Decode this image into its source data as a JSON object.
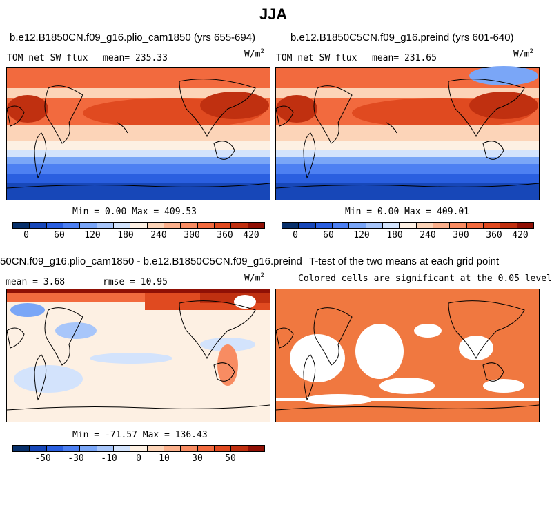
{
  "main_title": "JJA",
  "panels": {
    "top_left": {
      "case": "b.e12.B1850CN.f09_g16.plio_cam1850 (yrs 655-694)",
      "variable": "TOM net SW flux",
      "mean_text": "mean= 235.33",
      "units": "W/m",
      "units_exp": "2",
      "minmax": "Min =   0.00 Max = 409.53"
    },
    "top_right": {
      "case": "b.e12.B1850C5CN.f09_g16.preind (yrs 601-640)",
      "variable": "TOM net SW flux",
      "mean_text": "mean= 231.65",
      "units": "W/m",
      "units_exp": "2",
      "minmax": "Min =   0.00 Max = 409.01"
    },
    "bottom_left": {
      "case": "50CN.f09_g16.plio_cam1850 - b.e12.B1850C5CN.f09_g16.preind",
      "mean_text": "mean =   3.68",
      "rmse_text": "rmse =  10.95",
      "units": "W/m",
      "units_exp": "2",
      "minmax": "Min = -71.57 Max = 136.43"
    },
    "bottom_right": {
      "title": "T-test of the two means at each grid point",
      "subtitle": "Colored cells are significant at the 0.05 level"
    }
  },
  "colorbars": {
    "abs": {
      "ticks": [
        "0",
        "60",
        "120",
        "180",
        "240",
        "300",
        "360",
        "420"
      ],
      "colors": [
        "#08306b",
        "#1747b8",
        "#2a5fe0",
        "#4d80f2",
        "#7aa6f7",
        "#a8c6fa",
        "#d3e3fc",
        "#fdf0e3",
        "#fcd4b8",
        "#fbb08c",
        "#f88c62",
        "#f26a3e",
        "#e04a20",
        "#c03010",
        "#901005"
      ]
    },
    "diff": {
      "ticks": [
        "-50",
        "-30",
        "-10",
        "0",
        "10",
        "30",
        "50"
      ],
      "colors": [
        "#08306b",
        "#1747b8",
        "#2a5fe0",
        "#4d80f2",
        "#7aa6f7",
        "#a8c6fa",
        "#d3e3fc",
        "#fdf0e3",
        "#fcd4b8",
        "#fbb08c",
        "#f88c62",
        "#f26a3e",
        "#e04a20",
        "#c03010",
        "#901005"
      ]
    }
  },
  "chart_data": [
    {
      "type": "heatmap",
      "title": "TOM net SW flux",
      "subtitle": "b.e12.B1850CN.f09_g16.plio_cam1850 (yrs 655-694)",
      "units": "W/m2",
      "mean": 235.33,
      "min": 0.0,
      "max": 409.53,
      "colorbar_ticks": [
        0,
        60,
        120,
        180,
        240,
        300,
        360,
        420
      ]
    },
    {
      "type": "heatmap",
      "title": "TOM net SW flux",
      "subtitle": "b.e12.B1850C5CN.f09_g16.preind (yrs 601-640)",
      "units": "W/m2",
      "mean": 231.65,
      "min": 0.0,
      "max": 409.01,
      "colorbar_ticks": [
        0,
        60,
        120,
        180,
        240,
        300,
        360,
        420
      ]
    },
    {
      "type": "heatmap",
      "subtitle": "50CN.f09_g16.plio_cam1850 - b.e12.B1850C5CN.f09_g16.preind",
      "units": "W/m2",
      "mean": 3.68,
      "rmse": 10.95,
      "min": -71.57,
      "max": 136.43,
      "colorbar_ticks": [
        -50,
        -30,
        -10,
        0,
        10,
        30,
        50
      ]
    },
    {
      "type": "heatmap",
      "title": "T-test of the two means at each grid point",
      "subtitle": "Colored cells are significant at the 0.05 level",
      "significant_color": "#f07840"
    }
  ]
}
